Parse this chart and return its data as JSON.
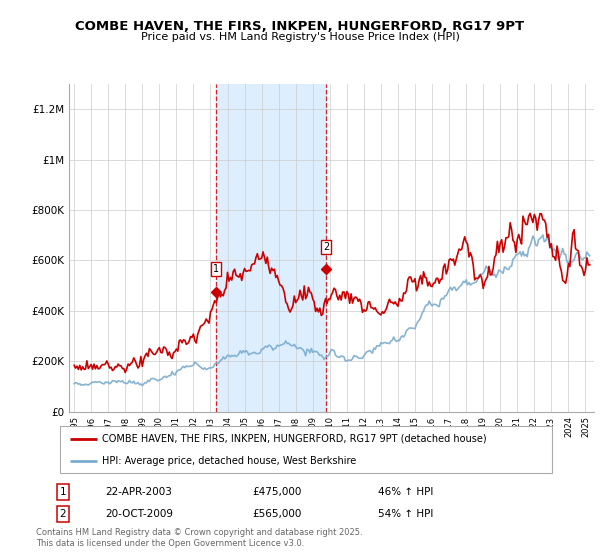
{
  "title": "COMBE HAVEN, THE FIRS, INKPEN, HUNGERFORD, RG17 9PT",
  "subtitle": "Price paid vs. HM Land Registry's House Price Index (HPI)",
  "legend_label1": "COMBE HAVEN, THE FIRS, INKPEN, HUNGERFORD, RG17 9PT (detached house)",
  "legend_label2": "HPI: Average price, detached house, West Berkshire",
  "annotation1_label": "1",
  "annotation1_date": "22-APR-2003",
  "annotation1_price": "£475,000",
  "annotation1_hpi": "46% ↑ HPI",
  "annotation2_label": "2",
  "annotation2_date": "20-OCT-2009",
  "annotation2_price": "£565,000",
  "annotation2_hpi": "54% ↑ HPI",
  "footer": "Contains HM Land Registry data © Crown copyright and database right 2025.\nThis data is licensed under the Open Government Licence v3.0.",
  "red_color": "#cc0000",
  "blue_color": "#7aacce",
  "shaded_color": "#ddeeff",
  "ylim": [
    0,
    1300000
  ],
  "yticks": [
    0,
    200000,
    400000,
    600000,
    800000,
    1000000,
    1200000
  ],
  "ytick_labels": [
    "£0",
    "£200K",
    "£400K",
    "£600K",
    "£800K",
    "£1M",
    "£1.2M"
  ],
  "sale1_year": 2003.31,
  "sale2_year": 2009.8,
  "sale1_value": 475000,
  "sale2_value": 565000,
  "xlim_min": 1994.7,
  "xlim_max": 2025.5
}
